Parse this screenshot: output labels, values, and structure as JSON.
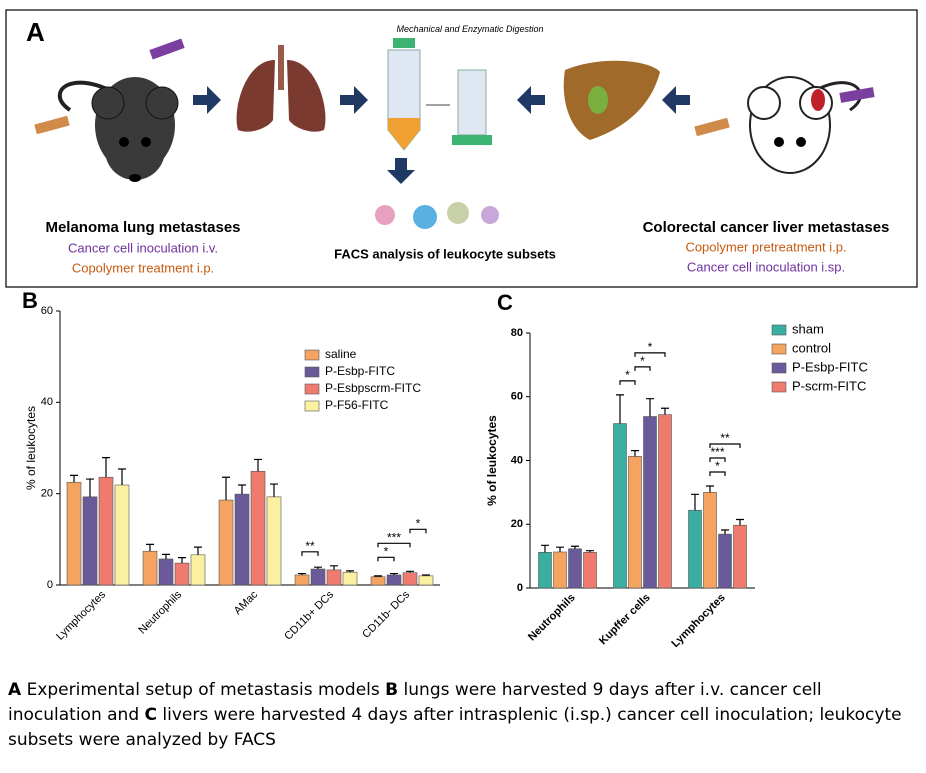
{
  "panel_a": {
    "label": "A",
    "digestion": "Mechanical and Enzymatic Digestion",
    "left_title": "Melanoma lung metastases",
    "left_line1": "Cancer cell inoculation i.v.",
    "left_line2": "Copolymer treatment i.p.",
    "center_title": "FACS analysis of leukocyte subsets",
    "right_title": "Colorectal cancer liver metastases",
    "right_line1": "Copolymer pretreatment i.p.",
    "right_line2": "Cancer cell inoculation i.sp."
  },
  "chart_data": [
    {
      "type": "bar",
      "panel": "B",
      "ylabel": "% of leukocytes",
      "ylim": [
        0,
        60
      ],
      "yticks": [
        0,
        20,
        40,
        60
      ],
      "categories": [
        "Lymphocytes",
        "Neutrophils",
        "AMac",
        "CD11b+ DCs",
        "CD11b- DCs"
      ],
      "series": [
        {
          "name": "saline",
          "color": "#f4a460",
          "values": [
            22.5,
            7.4,
            18.6,
            2.2,
            1.8
          ],
          "errors": [
            1.5,
            1.5,
            5,
            0.3,
            0.2
          ]
        },
        {
          "name": "P-Esbp-FITC",
          "color": "#6a5a9a",
          "values": [
            19.3,
            5.7,
            19.9,
            3.5,
            2.2
          ],
          "errors": [
            3.9,
            1,
            2,
            0.4,
            0.3
          ]
        },
        {
          "name": "P-Esbpscrm-FITC",
          "color": "#ee7b6e",
          "values": [
            23.6,
            4.8,
            24.9,
            3.3,
            2.7
          ],
          "errors": [
            4.3,
            1.2,
            2.6,
            0.9,
            0.3
          ]
        },
        {
          "name": "P-F56-FITC",
          "color": "#fbf0a0",
          "values": [
            21.9,
            6.6,
            19.3,
            2.8,
            2.0
          ],
          "errors": [
            3.5,
            1.7,
            2.8,
            0.3,
            0.2
          ]
        }
      ],
      "annotations": [
        {
          "text": "**",
          "category": 3,
          "from": 0,
          "to": 1
        },
        {
          "text": "*",
          "category": 4,
          "from": 0,
          "to": 1
        },
        {
          "text": "***",
          "category": 4,
          "from": 0,
          "to": 2
        },
        {
          "text": "*",
          "category": 4,
          "from": 2,
          "to": 3
        }
      ]
    },
    {
      "type": "bar",
      "panel": "C",
      "ylabel": "% of leukocytes",
      "ylim": [
        0,
        80
      ],
      "yticks": [
        0,
        20,
        40,
        60,
        80
      ],
      "categories": [
        "Neutrophils",
        "Kupffer cells",
        "Lymphocytes"
      ],
      "series": [
        {
          "name": "sham",
          "color": "#3aaea0",
          "values": [
            11.2,
            51.6,
            24.4
          ],
          "errors": [
            2.2,
            9,
            5
          ]
        },
        {
          "name": "control",
          "color": "#f4a460",
          "values": [
            11.3,
            41.3,
            30
          ],
          "errors": [
            1.5,
            1.8,
            2
          ]
        },
        {
          "name": "P-Esbp-FITC",
          "color": "#6a5a9a",
          "values": [
            12.3,
            53.8,
            16.9
          ],
          "errors": [
            0.8,
            5.6,
            1.3
          ]
        },
        {
          "name": "P-scrm-FITC",
          "color": "#ee7b6e",
          "values": [
            11.2,
            54.4,
            19.7
          ],
          "errors": [
            0.5,
            2,
            1.8
          ]
        }
      ],
      "annotations": [
        {
          "text": "*",
          "category": 1,
          "from": 0,
          "to": 1
        },
        {
          "text": "*",
          "category": 1,
          "from": 1,
          "to": 2
        },
        {
          "text": "*",
          "category": 1,
          "from": 1,
          "to": 3
        },
        {
          "text": "*",
          "category": 2,
          "from": 1,
          "to": 2
        },
        {
          "text": "***",
          "category": 2,
          "from": 1,
          "to": 2
        },
        {
          "text": "**",
          "category": 2,
          "from": 1,
          "to": 3
        }
      ]
    }
  ],
  "caption": [
    "A",
    " Experimental setup of metastasis models ",
    "B",
    " lungs were harvested 9 days after i.v. cancer cell inoculation and ",
    "C",
    " livers were harvested 4 days after intrasplenic (i.sp.) cancer cell inoculation; leukocyte subsets were analyzed by FACS"
  ]
}
